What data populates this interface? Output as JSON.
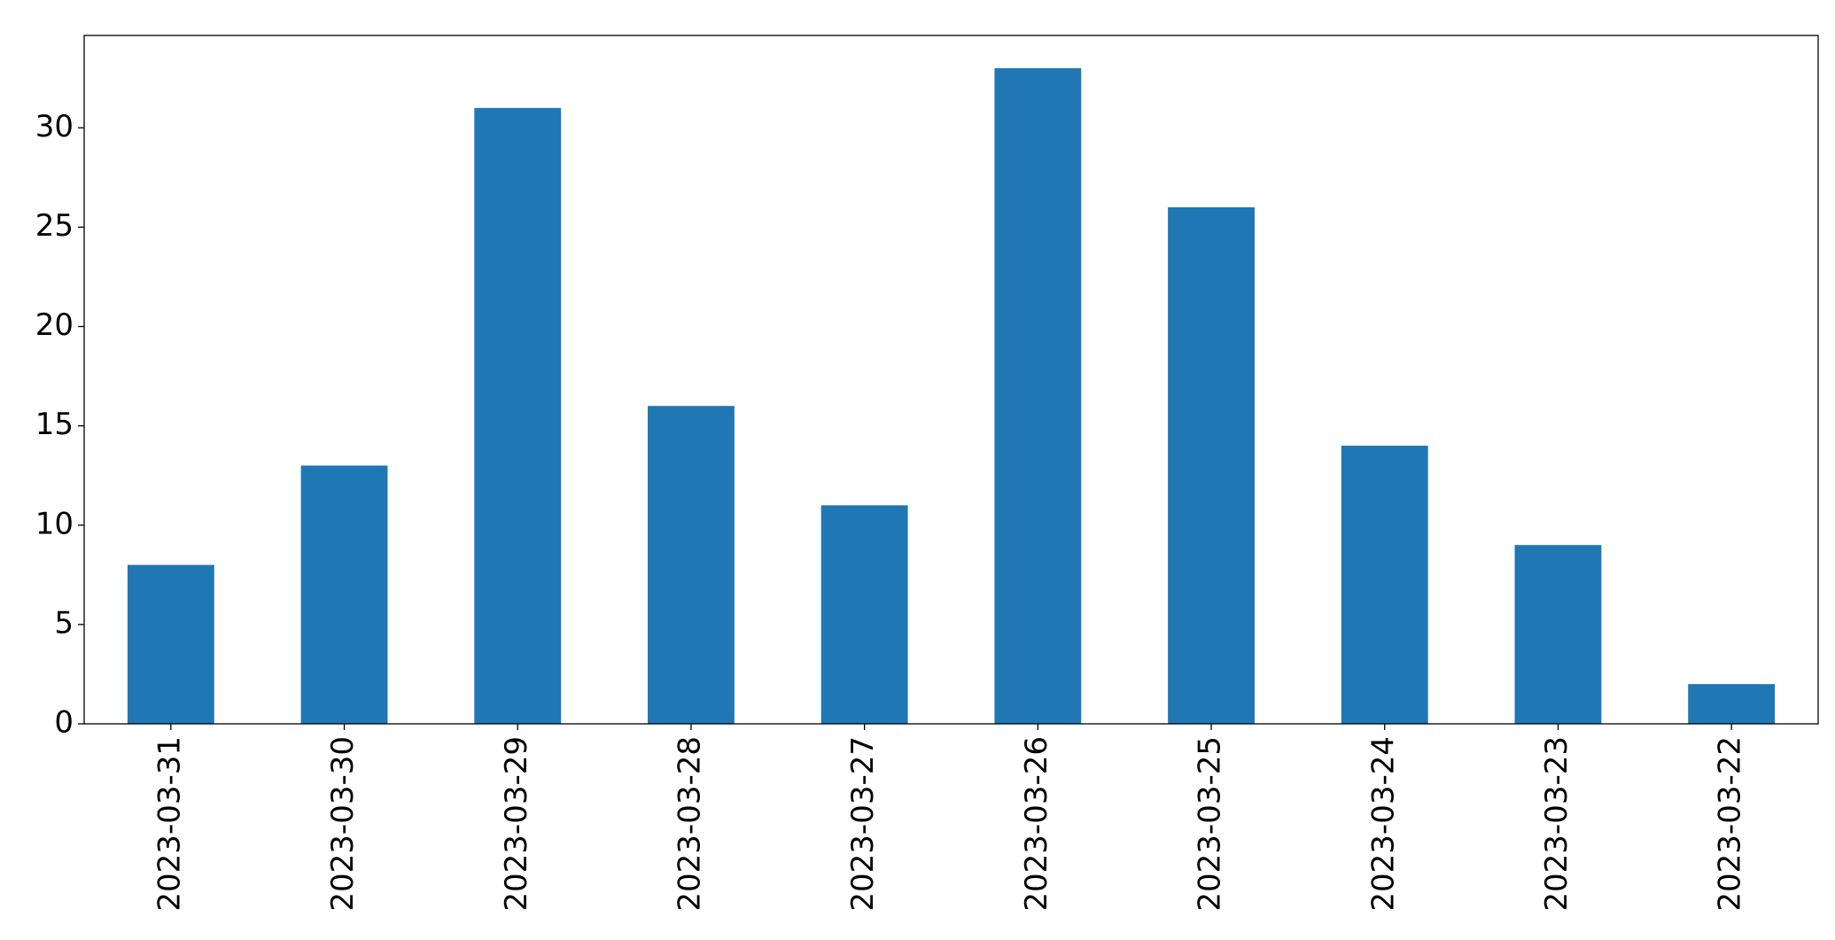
{
  "chart_data": {
    "type": "bar",
    "categories": [
      "2023-03-31",
      "2023-03-30",
      "2023-03-29",
      "2023-03-28",
      "2023-03-27",
      "2023-03-26",
      "2023-03-25",
      "2023-03-24",
      "2023-03-23",
      "2023-03-22"
    ],
    "values": [
      8,
      13,
      31,
      16,
      11,
      33,
      26,
      14,
      9,
      2
    ],
    "color": "#1f77b4",
    "ylim": [
      0,
      34.65
    ],
    "yticks": [
      0,
      5,
      10,
      15,
      20,
      25,
      30
    ],
    "grid": false
  }
}
